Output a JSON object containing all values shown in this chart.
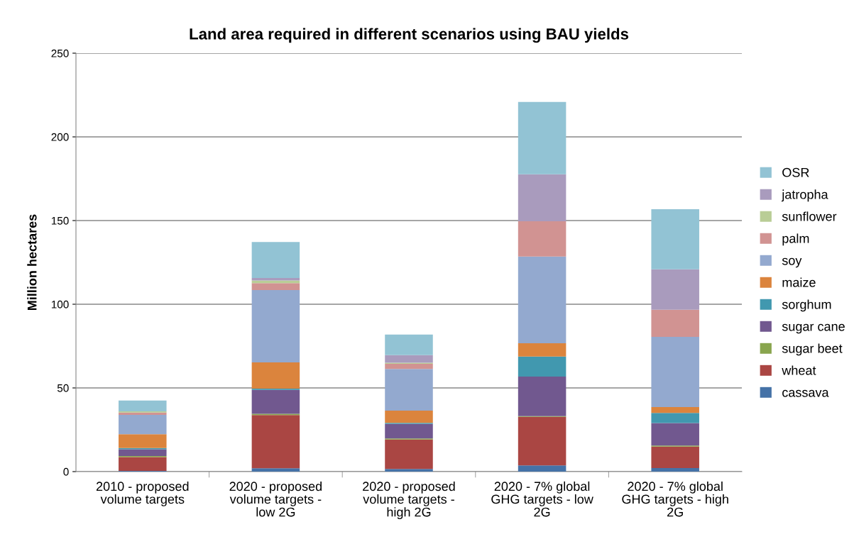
{
  "chart_data": {
    "type": "bar",
    "stacked": true,
    "title": "Land area required in different scenarios using BAU yields",
    "ylabel": "Million hectares",
    "categories": [
      "2010 - proposed volume targets",
      "2020 - proposed volume targets - low 2G",
      "2020 - proposed volume targets - high 2G",
      "2020 - 7% global GHG targets - low 2G",
      "2020 - 7% global GHG targets - high 2G"
    ],
    "series": [
      {
        "name": "cassava",
        "color": "#4572a7",
        "values": [
          0.4,
          2.0,
          1.6,
          3.7,
          2.1
        ]
      },
      {
        "name": "wheat",
        "color": "#aa4643",
        "values": [
          8.3,
          31.8,
          17.6,
          29.0,
          12.8
        ]
      },
      {
        "name": "sugar beet",
        "color": "#89a54e",
        "values": [
          0.6,
          0.7,
          0.6,
          0.5,
          0.7
        ]
      },
      {
        "name": "sugar cane",
        "color": "#71588f",
        "values": [
          4.1,
          14.3,
          8.7,
          23.6,
          13.4
        ]
      },
      {
        "name": "sorghum",
        "color": "#4198af",
        "values": [
          0.7,
          0.8,
          0.6,
          12.0,
          6.1
        ]
      },
      {
        "name": "maize",
        "color": "#db843d",
        "values": [
          8.2,
          15.7,
          7.3,
          7.9,
          3.5
        ]
      },
      {
        "name": "soy",
        "color": "#93a9cf",
        "values": [
          11.6,
          43.2,
          24.9,
          51.8,
          41.9
        ]
      },
      {
        "name": "palm",
        "color": "#d19392",
        "values": [
          1.4,
          4.1,
          3.1,
          21.1,
          16.2
        ]
      },
      {
        "name": "sunflower",
        "color": "#b9cd96",
        "values": [
          0.7,
          1.6,
          0.6,
          0,
          0
        ]
      },
      {
        "name": "jatropha",
        "color": "#a99bbd",
        "values": [
          0,
          1.5,
          4.6,
          28.1,
          24.2
        ]
      },
      {
        "name": "OSR",
        "color": "#92c3d4",
        "values": [
          6.5,
          21.5,
          12.3,
          43.2,
          35.9
        ]
      }
    ],
    "ylim": [
      0,
      250
    ],
    "yticks": [
      0,
      50,
      100,
      150,
      200,
      250
    ],
    "grid": "y",
    "legend": "right"
  }
}
